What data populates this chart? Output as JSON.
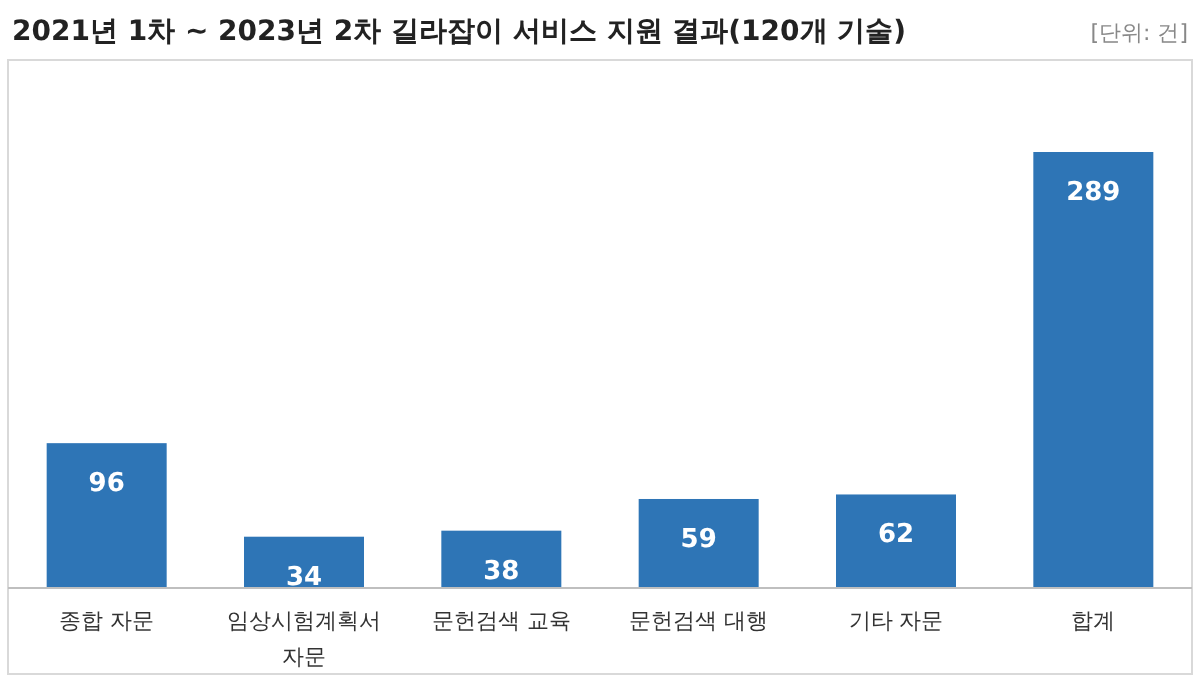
{
  "chart_data": {
    "type": "bar",
    "title": "2021년 1차 ~ 2023년 2차 길라잡이 서비스 지원 결과(120개 기술)",
    "annotations": [
      "[단위: 건]"
    ],
    "categories": [
      "종합 자문",
      "임상시험계획서 자문",
      "문헌검색 교육",
      "문헌검색 대행",
      "기타 자문",
      "합계"
    ],
    "values": [
      96,
      34,
      38,
      59,
      62,
      289
    ],
    "color": "#2e75b6",
    "data_labels": true
  }
}
